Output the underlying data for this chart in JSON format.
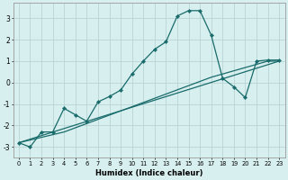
{
  "xlabel": "Humidex (Indice chaleur)",
  "ylabel": "",
  "xlim": [
    -0.5,
    23.5
  ],
  "ylim": [
    -3.5,
    3.7
  ],
  "yticks": [
    -3,
    -2,
    -1,
    0,
    1,
    2,
    3
  ],
  "xticks": [
    0,
    1,
    2,
    3,
    4,
    5,
    6,
    7,
    8,
    9,
    10,
    11,
    12,
    13,
    14,
    15,
    16,
    17,
    18,
    19,
    20,
    21,
    22,
    23
  ],
  "background_color": "#d7efef",
  "grid_color": "#b8d4d4",
  "line_color": "#1a6b6b",
  "curves": [
    {
      "x": [
        0,
        1,
        2,
        3,
        4,
        5,
        6,
        7,
        8,
        9,
        10,
        11,
        12,
        13,
        14,
        15,
        16,
        17,
        18,
        19,
        20,
        21,
        22,
        23
      ],
      "y": [
        -2.8,
        -3.0,
        -2.3,
        -2.3,
        -1.2,
        -1.5,
        -1.8,
        -0.9,
        -0.65,
        -0.35,
        0.4,
        1.0,
        1.55,
        1.9,
        3.1,
        3.35,
        3.35,
        2.2,
        0.2,
        -0.2,
        -0.7,
        1.0,
        1.05,
        1.05
      ],
      "marker": true
    },
    {
      "x": [
        0,
        23
      ],
      "y": [
        -2.8,
        1.0
      ],
      "marker": false
    },
    {
      "x": [
        0,
        4,
        17,
        19,
        20,
        21,
        22,
        23
      ],
      "y": [
        -2.8,
        -2.3,
        0.25,
        0.55,
        0.7,
        0.85,
        1.0,
        1.0
      ],
      "marker": false
    }
  ]
}
